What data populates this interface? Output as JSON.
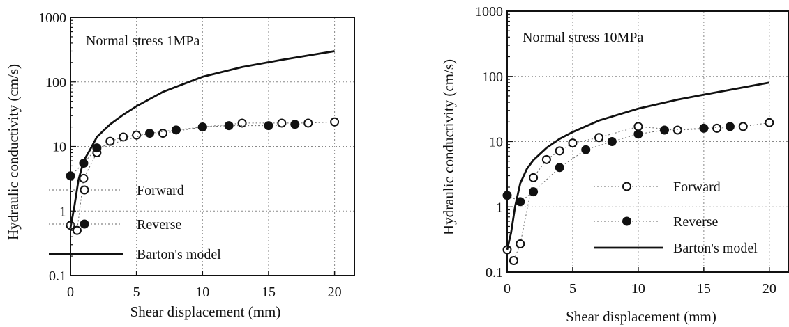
{
  "chart_data": [
    {
      "type": "line",
      "title": "",
      "annotation": "Normal stress 1MPa",
      "xlabel": "Shear displacement (mm)",
      "ylabel": "Hydraulic conductivity  (cm/s)",
      "yscale": "log",
      "xlim": [
        0,
        21.5
      ],
      "ylim": [
        0.1,
        1000
      ],
      "xticks": [
        0,
        5,
        10,
        15,
        20
      ],
      "xtick_labels": [
        "0",
        "5",
        "10",
        "15",
        "20"
      ],
      "yticks": [
        0.1,
        1,
        10,
        100,
        1000
      ],
      "ytick_labels": [
        "0.1",
        "1",
        "10",
        "100",
        "1000"
      ],
      "grid": true,
      "legend_position": "bottom-right",
      "series": [
        {
          "name": "Forward",
          "style": "open-circle-dotted",
          "x": [
            0,
            0.5,
            1,
            2,
            3,
            4,
            5,
            7,
            10,
            13,
            16,
            18,
            20
          ],
          "y": [
            0.6,
            0.5,
            3.2,
            8,
            12,
            14,
            15,
            16,
            20,
            23,
            23,
            23,
            24
          ]
        },
        {
          "name": "Reverse",
          "style": "filled-circle-dotted",
          "x": [
            0,
            1,
            2,
            6,
            8,
            10,
            12,
            15,
            17
          ],
          "y": [
            3.5,
            5.5,
            9.5,
            16,
            18,
            20,
            21,
            21,
            22
          ]
        },
        {
          "name": "Barton's model",
          "style": "solid-line",
          "x": [
            0,
            0.3,
            0.6,
            1,
            1.5,
            2,
            3,
            4,
            5,
            7,
            10,
            13,
            16,
            20
          ],
          "y": [
            0.55,
            1.2,
            3,
            6,
            9,
            14,
            22,
            31,
            42,
            70,
            120,
            170,
            220,
            300
          ]
        }
      ]
    },
    {
      "type": "line",
      "title": "",
      "annotation": "Normal stress 10MPa",
      "xlabel": "Shear displacement (mm)",
      "ylabel": "Hydraulic conductivity  (cm/s)",
      "yscale": "log",
      "xlim": [
        0,
        21.5
      ],
      "ylim": [
        0.1,
        1000
      ],
      "xticks": [
        0,
        5,
        10,
        15,
        20
      ],
      "xtick_labels": [
        "0",
        "5",
        "10",
        "15",
        "20"
      ],
      "yticks": [
        0.1,
        1,
        10,
        100,
        1000
      ],
      "ytick_labels": [
        "0.1",
        "1",
        "10",
        "100",
        "1000"
      ],
      "grid": true,
      "legend_position": "bottom-right",
      "series": [
        {
          "name": "Forward",
          "style": "open-circle-dotted",
          "x": [
            0,
            0.5,
            1,
            2,
            3,
            4,
            5,
            7,
            10,
            13,
            16,
            18,
            20
          ],
          "y": [
            0.22,
            0.15,
            0.27,
            2.8,
            5.3,
            7.2,
            9.5,
            11.5,
            17,
            15,
            16,
            17,
            19.5
          ]
        },
        {
          "name": "Reverse",
          "style": "filled-circle-dotted",
          "x": [
            0,
            1,
            2,
            4,
            6,
            8,
            10,
            12,
            15,
            17
          ],
          "y": [
            1.5,
            1.2,
            1.7,
            4,
            7.5,
            10,
            13,
            15,
            16,
            17
          ]
        },
        {
          "name": "Barton's model",
          "style": "solid-line",
          "x": [
            0,
            0.3,
            0.6,
            1,
            1.5,
            2,
            3,
            4,
            5,
            7,
            10,
            13,
            16,
            20
          ],
          "y": [
            0.22,
            0.4,
            1.0,
            2.3,
            3.8,
            5.2,
            8,
            11,
            14,
            21,
            32,
            44,
            57,
            80
          ]
        }
      ]
    }
  ]
}
